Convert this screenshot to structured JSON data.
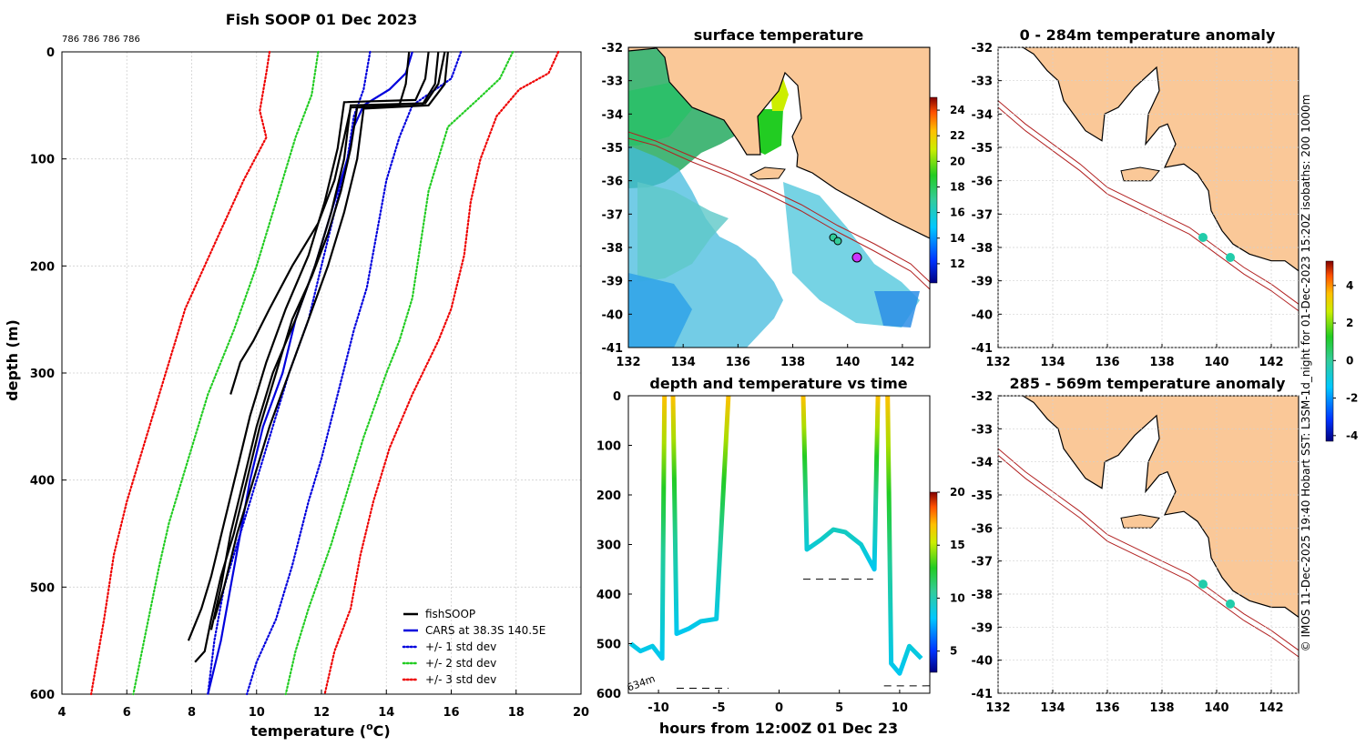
{
  "colors": {
    "land": "#fac898",
    "coast": "#000000",
    "isobath": "#b22222",
    "fishsoop": "#000000",
    "cars": "#0000dd",
    "std1": "#0000dd",
    "std2": "#22cc22",
    "std3": "#ee0000",
    "grid": "#d0d0d0"
  },
  "chart_data": [
    {
      "type": "line",
      "title": "Fish SOOP 01 Dec 2023",
      "annotation": "786 786 786 786",
      "xlabel": "temperature (",
      "xlabel_sup": "o",
      "xlabel_end": "C)",
      "ylabel": "depth (m)",
      "xlim": [
        4,
        20
      ],
      "ylim": [
        0,
        600
      ],
      "xticks": [
        "4",
        "6",
        "8",
        "10",
        "12",
        "14",
        "16",
        "18",
        "20"
      ],
      "yticks": [
        "0",
        "100",
        "200",
        "300",
        "400",
        "500",
        "600"
      ],
      "legend": [
        "fishSOOP",
        "CARS at 38.3S 140.5E",
        "+/- 1 std dev",
        "+/- 2 std dev",
        "+/- 3 std dev"
      ],
      "series": [
        {
          "name": "CARS mean",
          "style": "solid",
          "color": "cars",
          "points": [
            [
              14.8,
              0
            ],
            [
              14.6,
              20
            ],
            [
              14.1,
              35
            ],
            [
              13.3,
              50
            ],
            [
              13.0,
              70
            ],
            [
              12.8,
              100
            ],
            [
              12.3,
              150
            ],
            [
              11.8,
              200
            ],
            [
              11.2,
              250
            ],
            [
              10.8,
              300
            ],
            [
              10.2,
              350
            ],
            [
              9.8,
              400
            ],
            [
              9.5,
              450
            ],
            [
              9.2,
              500
            ],
            [
              8.9,
              550
            ],
            [
              8.5,
              600
            ]
          ]
        },
        {
          "name": "+1 std",
          "style": "dot",
          "color": "std1",
          "points": [
            [
              13.5,
              0
            ],
            [
              13.3,
              35
            ],
            [
              13.0,
              60
            ],
            [
              12.8,
              100
            ],
            [
              12.4,
              150
            ],
            [
              12.0,
              200
            ],
            [
              11.6,
              250
            ],
            [
              11.0,
              300
            ],
            [
              10.5,
              350
            ],
            [
              10.0,
              400
            ],
            [
              9.5,
              450
            ],
            [
              9.0,
              500
            ],
            [
              8.7,
              550
            ],
            [
              8.5,
              600
            ]
          ]
        },
        {
          "name": "-1 std",
          "style": "dot",
          "color": "std1",
          "points": [
            [
              16.3,
              0
            ],
            [
              16.0,
              25
            ],
            [
              14.8,
              50
            ],
            [
              14.4,
              80
            ],
            [
              14.0,
              120
            ],
            [
              13.7,
              170
            ],
            [
              13.4,
              220
            ],
            [
              13.0,
              260
            ],
            [
              12.5,
              320
            ],
            [
              12.0,
              380
            ],
            [
              11.6,
              420
            ],
            [
              11.1,
              480
            ],
            [
              10.6,
              530
            ],
            [
              10.0,
              570
            ],
            [
              9.7,
              600
            ]
          ]
        },
        {
          "name": "+2 std",
          "style": "dot",
          "color": "std2",
          "points": [
            [
              11.9,
              0
            ],
            [
              11.7,
              40
            ],
            [
              11.2,
              80
            ],
            [
              10.8,
              120
            ],
            [
              10.4,
              160
            ],
            [
              10.0,
              200
            ],
            [
              9.3,
              260
            ],
            [
              8.5,
              320
            ],
            [
              7.9,
              380
            ],
            [
              7.3,
              440
            ],
            [
              7.0,
              480
            ],
            [
              6.6,
              540
            ],
            [
              6.2,
              600
            ]
          ]
        },
        {
          "name": "-2 std",
          "style": "dot",
          "color": "std2",
          "points": [
            [
              17.9,
              0
            ],
            [
              17.5,
              25
            ],
            [
              16.8,
              45
            ],
            [
              15.9,
              70
            ],
            [
              15.3,
              130
            ],
            [
              15.0,
              190
            ],
            [
              14.8,
              230
            ],
            [
              14.4,
              270
            ],
            [
              14.0,
              300
            ],
            [
              13.3,
              360
            ],
            [
              12.8,
              410
            ],
            [
              12.3,
              460
            ],
            [
              11.6,
              520
            ],
            [
              11.2,
              560
            ],
            [
              10.9,
              600
            ]
          ]
        },
        {
          "name": "+3 std",
          "style": "dot",
          "color": "std3",
          "points": [
            [
              10.4,
              0
            ],
            [
              10.3,
              20
            ],
            [
              10.1,
              55
            ],
            [
              10.3,
              80
            ],
            [
              9.6,
              120
            ],
            [
              8.7,
              180
            ],
            [
              7.8,
              240
            ],
            [
              7.2,
              300
            ],
            [
              6.6,
              360
            ],
            [
              6.0,
              420
            ],
            [
              5.6,
              470
            ],
            [
              5.3,
              530
            ],
            [
              4.9,
              600
            ]
          ]
        },
        {
          "name": "-3 std",
          "style": "dot",
          "color": "std3",
          "points": [
            [
              19.3,
              0
            ],
            [
              19.0,
              20
            ],
            [
              18.1,
              35
            ],
            [
              17.4,
              60
            ],
            [
              16.9,
              100
            ],
            [
              16.6,
              140
            ],
            [
              16.4,
              190
            ],
            [
              16.0,
              240
            ],
            [
              15.6,
              270
            ],
            [
              14.8,
              320
            ],
            [
              14.1,
              370
            ],
            [
              13.6,
              420
            ],
            [
              13.2,
              470
            ],
            [
              12.9,
              520
            ],
            [
              12.4,
              560
            ],
            [
              12.1,
              600
            ]
          ]
        },
        {
          "name": "cast 1",
          "style": "solid",
          "color": "fishsoop",
          "points": [
            [
              14.7,
              0
            ],
            [
              14.6,
              30
            ],
            [
              14.4,
              50
            ],
            [
              12.9,
              52
            ],
            [
              12.7,
              80
            ],
            [
              12.4,
              120
            ],
            [
              11.9,
              160
            ],
            [
              11.1,
              200
            ],
            [
              10.4,
              240
            ],
            [
              9.9,
              270
            ],
            [
              9.5,
              290
            ],
            [
              9.3,
              310
            ],
            [
              9.2,
              320
            ]
          ]
        },
        {
          "name": "cast 2",
          "style": "solid",
          "color": "fishsoop",
          "points": [
            [
              15.6,
              0
            ],
            [
              15.5,
              30
            ],
            [
              15.1,
              50
            ],
            [
              13.1,
              52
            ],
            [
              12.9,
              90
            ],
            [
              12.6,
              130
            ],
            [
              12.2,
              170
            ],
            [
              11.7,
              210
            ],
            [
              11.1,
              250
            ],
            [
              10.6,
              300
            ],
            [
              10.1,
              350
            ],
            [
              9.7,
              400
            ],
            [
              9.3,
              450
            ],
            [
              8.9,
              490
            ],
            [
              8.6,
              530
            ],
            [
              8.4,
              560
            ],
            [
              8.1,
              570
            ]
          ]
        },
        {
          "name": "cast 3",
          "style": "solid",
          "color": "fishsoop",
          "points": [
            [
              15.8,
              0
            ],
            [
              15.6,
              30
            ],
            [
              15.2,
              48
            ],
            [
              12.9,
              50
            ],
            [
              12.7,
              100
            ],
            [
              12.3,
              150
            ],
            [
              11.8,
              200
            ],
            [
              11.2,
              250
            ],
            [
              10.5,
              300
            ],
            [
              10.0,
              350
            ],
            [
              9.6,
              400
            ],
            [
              9.2,
              450
            ],
            [
              8.9,
              500
            ],
            [
              8.6,
              540
            ]
          ]
        },
        {
          "name": "cast 4",
          "style": "solid",
          "color": "fishsoop",
          "points": [
            [
              15.3,
              0
            ],
            [
              15.2,
              25
            ],
            [
              14.9,
              45
            ],
            [
              12.7,
              47
            ],
            [
              12.5,
              90
            ],
            [
              12.1,
              140
            ],
            [
              11.6,
              190
            ],
            [
              10.9,
              240
            ],
            [
              10.3,
              290
            ],
            [
              9.8,
              340
            ],
            [
              9.4,
              390
            ],
            [
              9.0,
              440
            ],
            [
              8.6,
              490
            ],
            [
              8.3,
              520
            ],
            [
              7.9,
              550
            ]
          ]
        },
        {
          "name": "cast 5",
          "style": "solid",
          "color": "fishsoop",
          "points": [
            [
              15.9,
              0
            ],
            [
              15.8,
              30
            ],
            [
              15.3,
              50
            ],
            [
              13.3,
              53
            ],
            [
              13.1,
              100
            ],
            [
              12.7,
              150
            ],
            [
              12.2,
              200
            ],
            [
              11.6,
              250
            ],
            [
              11.0,
              300
            ],
            [
              10.4,
              350
            ],
            [
              9.9,
              400
            ],
            [
              9.4,
              450
            ],
            [
              9.0,
              500
            ],
            [
              8.7,
              530
            ]
          ]
        }
      ]
    },
    {
      "type": "heatmap",
      "title": "surface temperature",
      "xlim": [
        132,
        143
      ],
      "ylim": [
        -41,
        -32
      ],
      "xticks": [
        "132",
        "134",
        "136",
        "138",
        "140",
        "142"
      ],
      "yticks": [
        "-32",
        "-33",
        "-34",
        "-35",
        "-36",
        "-37",
        "-38",
        "-39",
        "-40",
        "-41"
      ],
      "colorbar": {
        "min": 10.5,
        "max": 25,
        "ticks": [
          "12",
          "14",
          "16",
          "18",
          "20",
          "22",
          "24"
        ]
      }
    },
    {
      "type": "heatmap",
      "title": "0 - 284m temperature anomaly",
      "xlim": [
        132,
        143
      ],
      "ylim": [
        -41,
        -32
      ],
      "xticks": [
        "132",
        "134",
        "136",
        "138",
        "140",
        "142"
      ],
      "yticks": [
        "-32",
        "-33",
        "-34",
        "-35",
        "-36",
        "-37",
        "-38",
        "-39",
        "-40",
        "-41"
      ],
      "colorbar": {
        "min": -4.3,
        "max": 5.3,
        "ticks": [
          "4",
          "2",
          "0",
          "-2",
          "-4"
        ]
      },
      "points": [
        [
          139.5,
          -37.7
        ],
        [
          140.5,
          -38.3
        ]
      ]
    },
    {
      "type": "line",
      "title": "depth and temperature vs time",
      "xlabel": "hours from 12:00Z 01 Dec 23",
      "xlim": [
        -12.5,
        12.5
      ],
      "ylim": [
        0,
        600
      ],
      "xticks": [
        "-10",
        "-5",
        "0",
        "5",
        "10"
      ],
      "yticks": [
        "0",
        "100",
        "200",
        "300",
        "400",
        "500",
        "600"
      ],
      "annotation": "634m",
      "colorbar": {
        "min": 3,
        "max": 20,
        "ticks": [
          "20",
          "15",
          "10",
          "5"
        ]
      }
    },
    {
      "type": "heatmap",
      "title": "285 - 569m temperature anomaly",
      "xlim": [
        132,
        143
      ],
      "ylim": [
        -41,
        -32
      ],
      "xticks": [
        "132",
        "134",
        "136",
        "138",
        "140",
        "142"
      ],
      "yticks": [
        "-32",
        "-33",
        "-34",
        "-35",
        "-36",
        "-37",
        "-38",
        "-39",
        "-40",
        "-41"
      ],
      "points": [
        [
          139.5,
          -37.7
        ],
        [
          140.5,
          -38.3
        ]
      ]
    }
  ],
  "credit": "© IMOS 11-Dec-2025 19:40 Hobart SST: L3SM-1d_night for 01-Dec-2023 15:20Z isobaths: 200  1000m"
}
